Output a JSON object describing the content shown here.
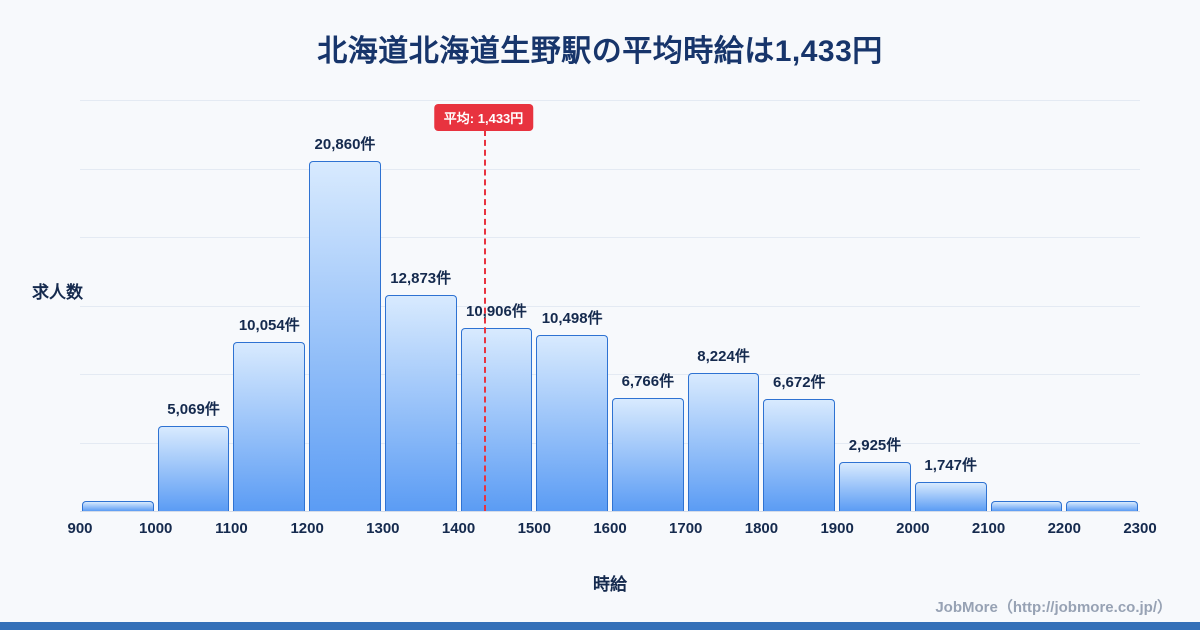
{
  "title": "北海道北海道生野駅の平均時給は1,433円",
  "ylabel": "求人数",
  "xlabel": "時給",
  "footer": "JobMore（http://jobmore.co.jp/）",
  "chart_data": {
    "type": "bar",
    "title": "北海道北海道生野駅の平均時給は1,433円",
    "xlabel": "時給",
    "ylabel": "求人数",
    "x_ticks": [
      "900",
      "1000",
      "1100",
      "1200",
      "1300",
      "1400",
      "1500",
      "1600",
      "1700",
      "1800",
      "1900",
      "2000",
      "2100",
      "2200",
      "2300"
    ],
    "bins": [
      [
        900,
        1000
      ],
      [
        1000,
        1100
      ],
      [
        1100,
        1200
      ],
      [
        1200,
        1300
      ],
      [
        1300,
        1400
      ],
      [
        1400,
        1500
      ],
      [
        1500,
        1600
      ],
      [
        1600,
        1700
      ],
      [
        1700,
        1800
      ],
      [
        1800,
        1900
      ],
      [
        1900,
        2000
      ],
      [
        2000,
        2100
      ],
      [
        2100,
        2200
      ],
      [
        2200,
        2300
      ]
    ],
    "values": [
      600,
      5069,
      10054,
      20860,
      12873,
      10906,
      10498,
      6766,
      8224,
      6672,
      2925,
      1747,
      600,
      600
    ],
    "labels": [
      "",
      "5,069件",
      "10,054件",
      "20,860件",
      "12,873件",
      "10,906件",
      "10,498件",
      "6,766件",
      "8,224件",
      "6,672件",
      "2,925件",
      "1,747件",
      "",
      ""
    ],
    "average": {
      "value": 1433,
      "label": "平均: 1,433円"
    },
    "x_range": [
      900,
      2300
    ],
    "ylim": [
      0,
      24500
    ],
    "grid": true,
    "legend": "none",
    "colors": {
      "bar_top": "#d8eafe",
      "bar_bottom": "#5b9cf4",
      "bar_border": "#2e72d2",
      "average_line": "#e8333f",
      "title_text": "#17356b",
      "label_text": "#152a4e",
      "footer_text": "#97a2b4",
      "background": "#f7f9fc",
      "bottom_strip": "#3470b8"
    }
  }
}
